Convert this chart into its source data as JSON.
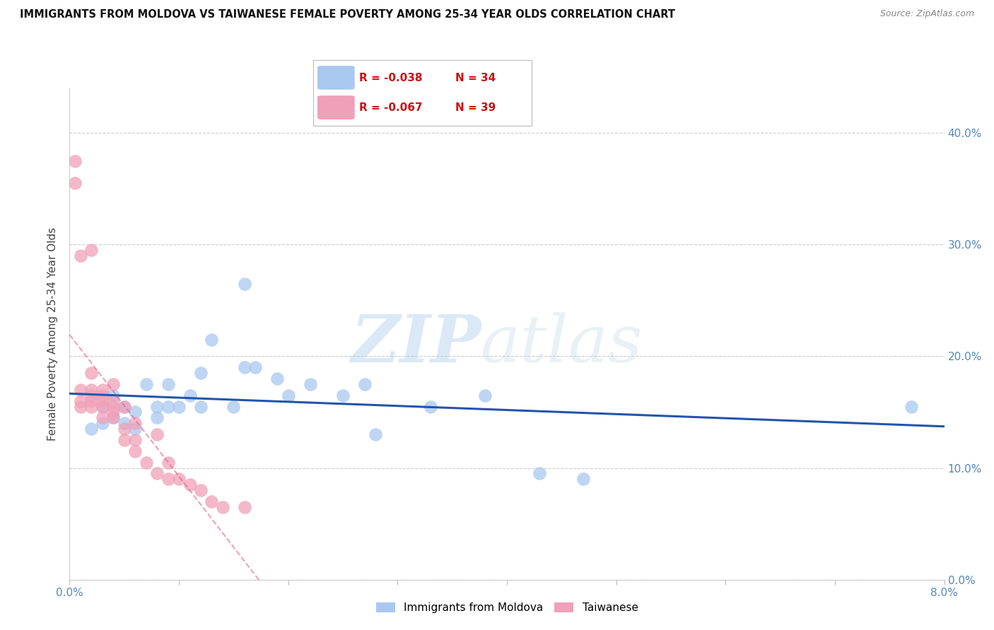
{
  "title": "IMMIGRANTS FROM MOLDOVA VS TAIWANESE FEMALE POVERTY AMONG 25-34 YEAR OLDS CORRELATION CHART",
  "source": "Source: ZipAtlas.com",
  "ylabel": "Female Poverty Among 25-34 Year Olds",
  "legend1_label": "Immigrants from Moldova",
  "legend2_label": "Taiwanese",
  "legend1_r": "-0.038",
  "legend1_n": "34",
  "legend2_r": "-0.067",
  "legend2_n": "39",
  "blue_color": "#a8c8f0",
  "pink_color": "#f0a0b8",
  "trendline_blue": "#2255aa",
  "trendline_pink": "#dd6688",
  "watermark_zip": "ZIP",
  "watermark_atlas": "atlas",
  "xlim": [
    0.0,
    0.08
  ],
  "ylim": [
    0.0,
    0.44
  ],
  "yticks": [
    0.0,
    0.1,
    0.2,
    0.3,
    0.4
  ],
  "xticks": [
    0.0,
    0.01,
    0.02,
    0.03,
    0.04,
    0.05,
    0.06,
    0.07,
    0.08
  ],
  "blue_x": [
    0.002,
    0.003,
    0.003,
    0.004,
    0.004,
    0.005,
    0.005,
    0.006,
    0.006,
    0.007,
    0.008,
    0.008,
    0.009,
    0.009,
    0.01,
    0.011,
    0.012,
    0.012,
    0.013,
    0.015,
    0.016,
    0.017,
    0.019,
    0.02,
    0.022,
    0.025,
    0.027,
    0.028,
    0.033,
    0.038,
    0.043,
    0.047,
    0.077,
    0.016
  ],
  "blue_y": [
    0.135,
    0.14,
    0.155,
    0.145,
    0.165,
    0.14,
    0.155,
    0.135,
    0.15,
    0.175,
    0.155,
    0.145,
    0.155,
    0.175,
    0.155,
    0.165,
    0.185,
    0.155,
    0.215,
    0.155,
    0.19,
    0.19,
    0.18,
    0.165,
    0.175,
    0.165,
    0.175,
    0.13,
    0.155,
    0.165,
    0.095,
    0.09,
    0.155,
    0.265
  ],
  "pink_x": [
    0.0005,
    0.0005,
    0.001,
    0.001,
    0.001,
    0.001,
    0.002,
    0.002,
    0.002,
    0.002,
    0.002,
    0.003,
    0.003,
    0.003,
    0.003,
    0.003,
    0.004,
    0.004,
    0.004,
    0.004,
    0.004,
    0.005,
    0.005,
    0.005,
    0.006,
    0.006,
    0.006,
    0.007,
    0.008,
    0.008,
    0.009,
    0.009,
    0.01,
    0.011,
    0.012,
    0.013,
    0.014,
    0.016,
    0.002
  ],
  "pink_y": [
    0.375,
    0.355,
    0.29,
    0.17,
    0.16,
    0.155,
    0.17,
    0.165,
    0.16,
    0.155,
    0.185,
    0.17,
    0.165,
    0.155,
    0.145,
    0.16,
    0.155,
    0.15,
    0.145,
    0.16,
    0.175,
    0.135,
    0.125,
    0.155,
    0.14,
    0.115,
    0.125,
    0.105,
    0.13,
    0.095,
    0.09,
    0.105,
    0.09,
    0.085,
    0.08,
    0.07,
    0.065,
    0.065,
    0.295
  ]
}
